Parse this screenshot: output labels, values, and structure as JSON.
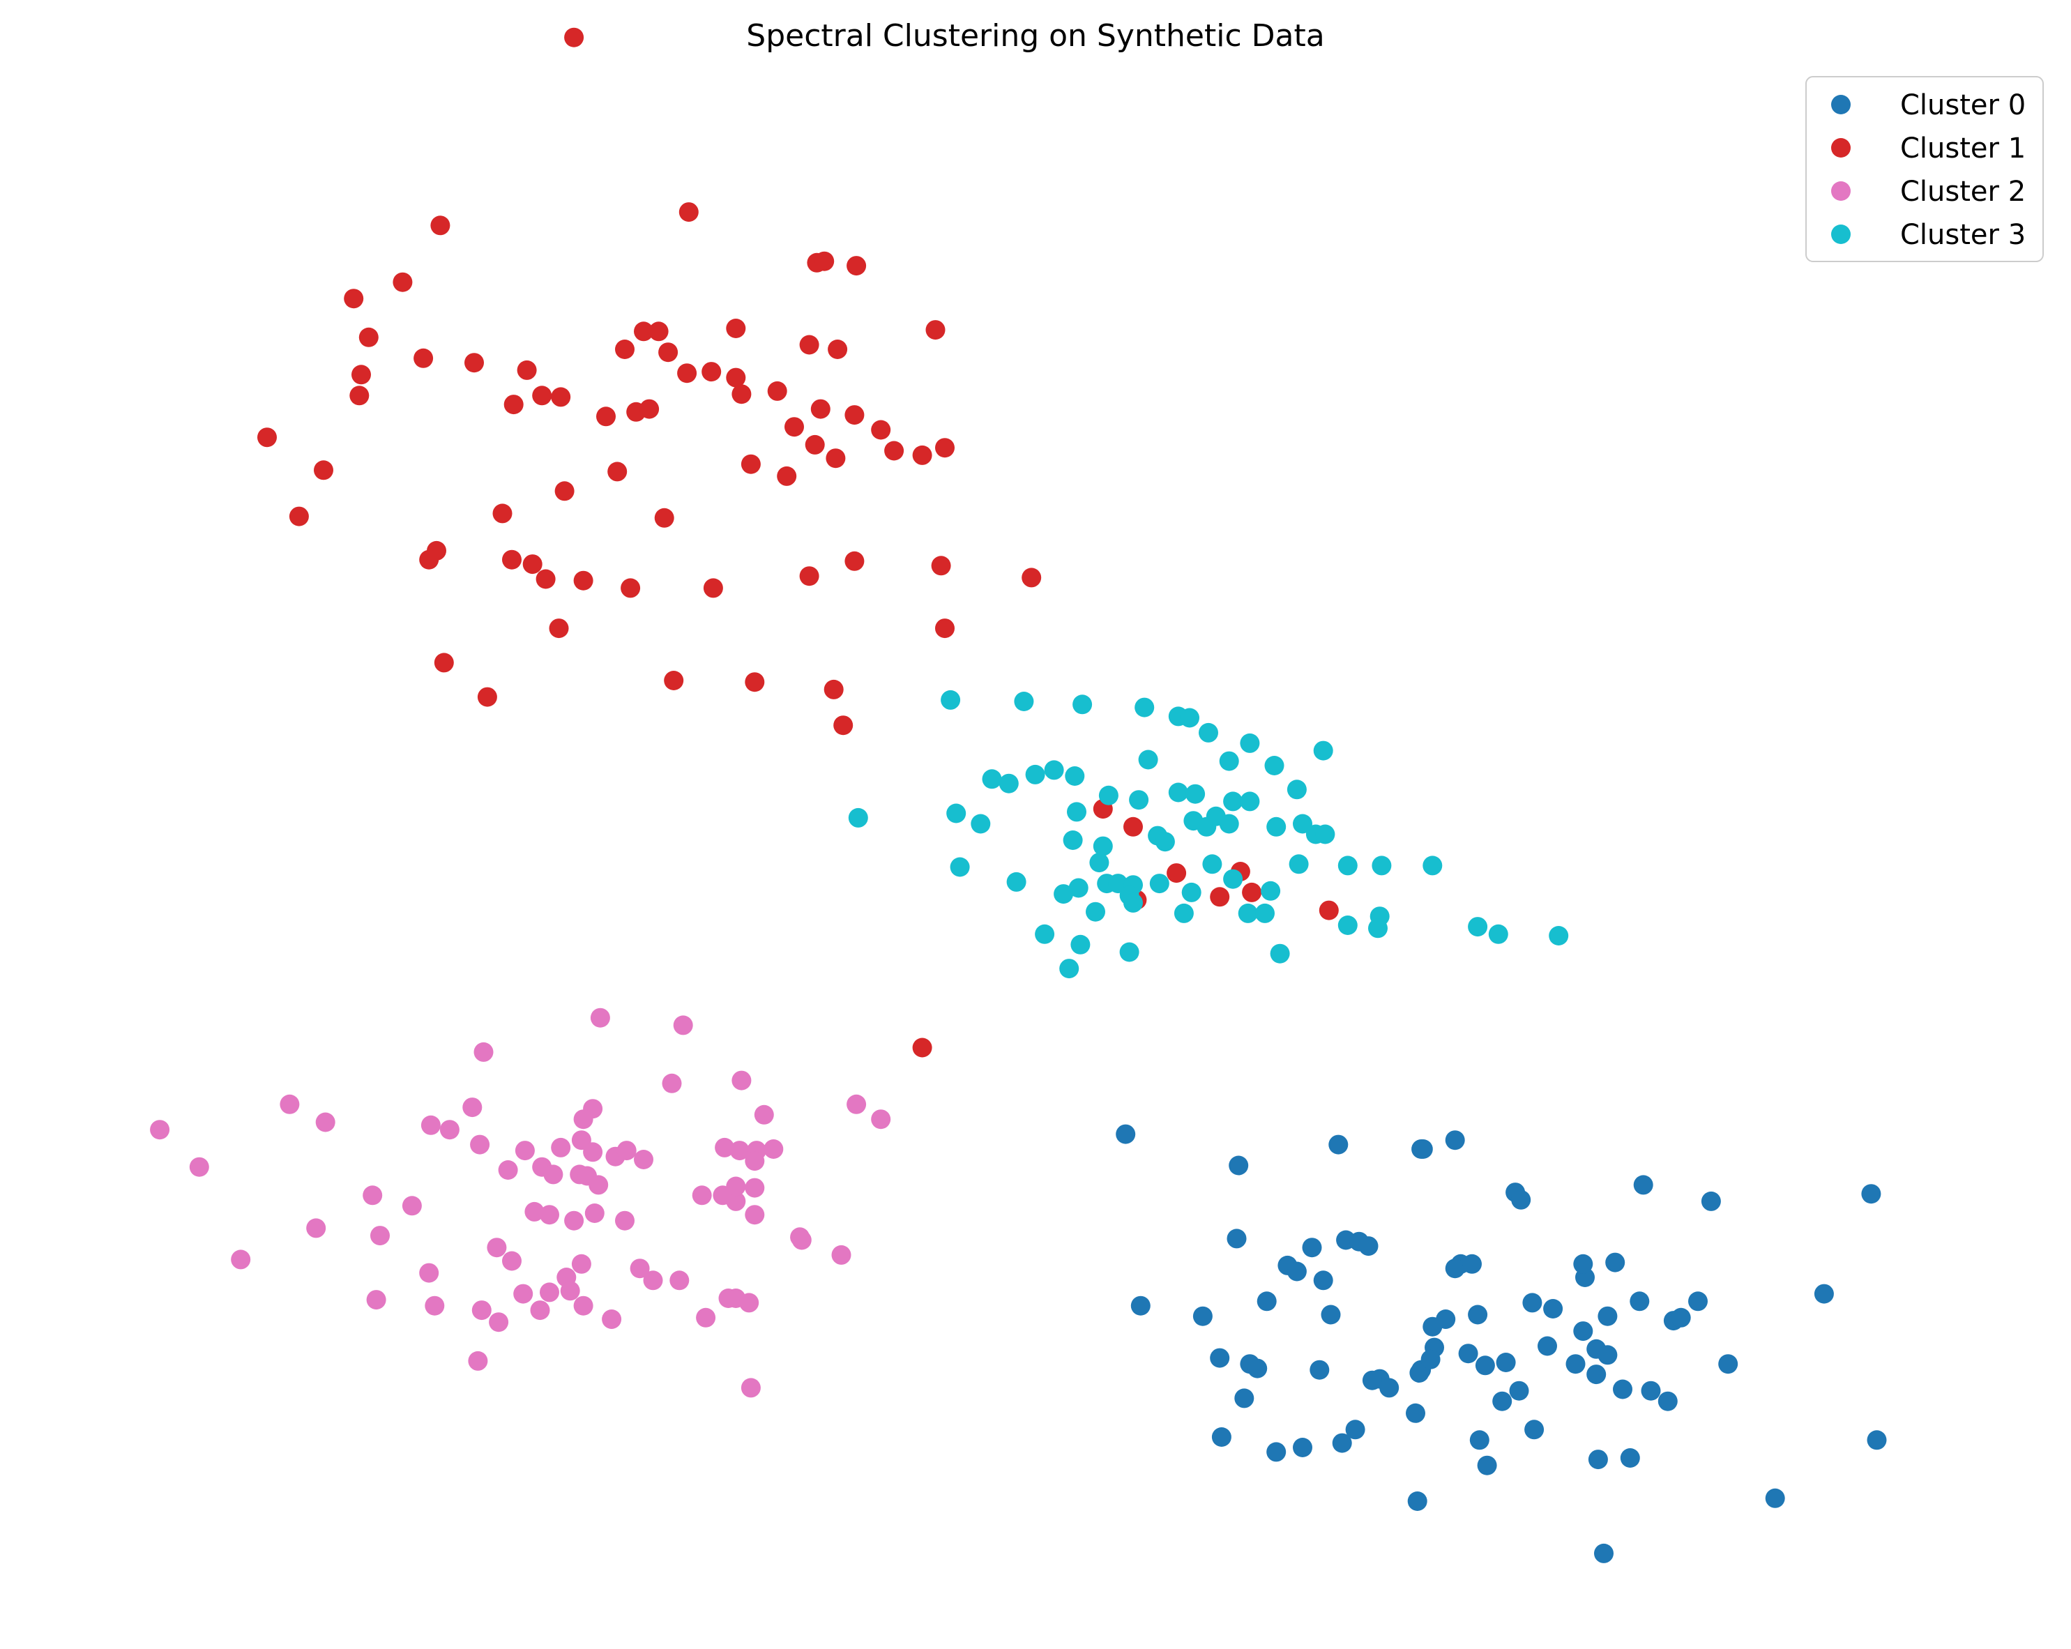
{
  "chart_data": {
    "type": "scatter",
    "title": "Spectral Clustering on Synthetic Data",
    "xlabel": "",
    "ylabel": "",
    "axes_visible": false,
    "grid": false,
    "legend_position": "top-right",
    "xlim": [
      0,
      100
    ],
    "ylim": [
      0,
      100
    ],
    "series": [
      {
        "name": "Cluster 0",
        "color": "#1f77b4",
        "points": [
          [
            54.6,
            31.0
          ],
          [
            60.6,
            28.9
          ],
          [
            65.9,
            30.3
          ],
          [
            70.3,
            30.0
          ],
          [
            70.4,
            30.0
          ],
          [
            72.1,
            30.6
          ],
          [
            75.3,
            27.1
          ],
          [
            75.6,
            26.6
          ],
          [
            82.1,
            27.6
          ],
          [
            85.7,
            26.5
          ],
          [
            94.2,
            27.0
          ],
          [
            60.5,
            24.0
          ],
          [
            64.5,
            23.4
          ],
          [
            66.3,
            23.9
          ],
          [
            67.0,
            23.8
          ],
          [
            67.5,
            23.5
          ],
          [
            72.4,
            22.3
          ],
          [
            72.1,
            22.0
          ],
          [
            73.0,
            22.3
          ],
          [
            79.0,
            21.4
          ],
          [
            78.9,
            22.3
          ],
          [
            80.6,
            22.4
          ],
          [
            63.2,
            22.2
          ],
          [
            63.7,
            21.8
          ],
          [
            65.1,
            21.2
          ],
          [
            55.4,
            19.5
          ],
          [
            58.7,
            18.8
          ],
          [
            62.1,
            19.8
          ],
          [
            65.5,
            18.9
          ],
          [
            71.6,
            18.6
          ],
          [
            73.3,
            18.9
          ],
          [
            76.2,
            19.7
          ],
          [
            77.3,
            19.3
          ],
          [
            80.2,
            18.8
          ],
          [
            81.9,
            19.8
          ],
          [
            83.7,
            18.5
          ],
          [
            84.1,
            18.7
          ],
          [
            85.0,
            19.8
          ],
          [
            91.7,
            20.3
          ],
          [
            70.9,
            18.1
          ],
          [
            71.0,
            16.7
          ],
          [
            72.8,
            16.3
          ],
          [
            74.8,
            15.7
          ],
          [
            77.0,
            16.8
          ],
          [
            78.9,
            17.8
          ],
          [
            79.6,
            16.6
          ],
          [
            80.2,
            16.2
          ],
          [
            86.6,
            15.6
          ],
          [
            59.6,
            16.0
          ],
          [
            61.2,
            15.6
          ],
          [
            61.6,
            15.3
          ],
          [
            64.9,
            15.2
          ],
          [
            68.1,
            14.6
          ],
          [
            70.3,
            15.2
          ],
          [
            70.2,
            15.0
          ],
          [
            70.8,
            15.9
          ],
          [
            73.7,
            15.5
          ],
          [
            78.5,
            15.6
          ],
          [
            79.6,
            14.9
          ],
          [
            60.9,
            13.3
          ],
          [
            67.7,
            14.5
          ],
          [
            68.6,
            14.0
          ],
          [
            70.0,
            12.3
          ],
          [
            74.6,
            13.1
          ],
          [
            75.5,
            13.8
          ],
          [
            81.0,
            13.9
          ],
          [
            82.5,
            13.8
          ],
          [
            83.4,
            13.1
          ],
          [
            94.5,
            10.5
          ],
          [
            59.7,
            10.7
          ],
          [
            62.6,
            9.7
          ],
          [
            64.0,
            10.0
          ],
          [
            66.1,
            10.3
          ],
          [
            73.4,
            10.5
          ],
          [
            76.3,
            11.2
          ],
          [
            81.4,
            9.3
          ],
          [
            70.1,
            6.4
          ],
          [
            73.8,
            8.8
          ],
          [
            89.1,
            6.6
          ],
          [
            80.0,
            2.9
          ],
          [
            66.8,
            11.2
          ],
          [
            79.7,
            9.2
          ]
        ]
      },
      {
        "name": "Cluster 1",
        "color": "#d62728",
        "points": [
          [
            25.3,
            104.5
          ],
          [
            18.2,
            91.9
          ],
          [
            31.4,
            92.8
          ],
          [
            38.2,
            89.4
          ],
          [
            38.6,
            89.5
          ],
          [
            40.3,
            89.2
          ],
          [
            44.5,
            84.9
          ],
          [
            13.6,
            87.0
          ],
          [
            16.2,
            88.1
          ],
          [
            29.8,
            84.8
          ],
          [
            33.9,
            85.0
          ],
          [
            37.8,
            83.9
          ],
          [
            14.4,
            84.4
          ],
          [
            17.3,
            83.0
          ],
          [
            14.0,
            81.9
          ],
          [
            13.9,
            80.5
          ],
          [
            20.0,
            82.7
          ],
          [
            22.8,
            82.2
          ],
          [
            22.1,
            79.9
          ],
          [
            23.6,
            80.5
          ],
          [
            24.6,
            80.4
          ],
          [
            28.0,
            83.6
          ],
          [
            29.0,
            84.8
          ],
          [
            30.3,
            83.4
          ],
          [
            31.3,
            82.0
          ],
          [
            32.6,
            82.1
          ],
          [
            33.9,
            81.7
          ],
          [
            34.2,
            80.6
          ],
          [
            36.1,
            80.8
          ],
          [
            39.3,
            83.6
          ],
          [
            27.0,
            79.1
          ],
          [
            28.6,
            79.4
          ],
          [
            29.3,
            79.6
          ],
          [
            38.4,
            79.6
          ],
          [
            37.0,
            78.4
          ],
          [
            38.1,
            77.2
          ],
          [
            40.2,
            79.2
          ],
          [
            41.6,
            78.2
          ],
          [
            42.3,
            76.8
          ],
          [
            43.8,
            76.5
          ],
          [
            45.0,
            77.0
          ],
          [
            34.7,
            75.9
          ],
          [
            36.6,
            75.1
          ],
          [
            39.2,
            76.3
          ],
          [
            24.8,
            74.1
          ],
          [
            27.6,
            75.4
          ],
          [
            30.1,
            72.3
          ],
          [
            9.0,
            77.7
          ],
          [
            12.0,
            75.5
          ],
          [
            10.7,
            72.4
          ],
          [
            18.0,
            70.1
          ],
          [
            17.6,
            69.5
          ],
          [
            22.0,
            69.5
          ],
          [
            23.1,
            69.2
          ],
          [
            21.5,
            72.6
          ],
          [
            23.8,
            68.2
          ],
          [
            25.8,
            68.1
          ],
          [
            28.3,
            67.6
          ],
          [
            32.7,
            67.6
          ],
          [
            37.8,
            68.4
          ],
          [
            40.2,
            69.4
          ],
          [
            44.8,
            69.1
          ],
          [
            49.6,
            68.3
          ],
          [
            45.0,
            64.9
          ],
          [
            24.5,
            64.9
          ],
          [
            18.4,
            62.6
          ],
          [
            30.6,
            61.4
          ],
          [
            34.9,
            61.3
          ],
          [
            39.1,
            60.8
          ],
          [
            39.6,
            58.4
          ],
          [
            53.4,
            52.8
          ],
          [
            55.0,
            51.6
          ],
          [
            60.7,
            48.6
          ],
          [
            55.2,
            46.7
          ],
          [
            57.3,
            48.5
          ],
          [
            61.3,
            47.2
          ],
          [
            59.6,
            46.9
          ],
          [
            65.4,
            46.0
          ],
          [
            43.8,
            36.8
          ],
          [
            20.7,
            60.3
          ]
        ]
      },
      {
        "name": "Cluster 2",
        "color": "#e377c2",
        "points": [
          [
            26.7,
            38.8
          ],
          [
            31.1,
            38.3
          ],
          [
            20.5,
            36.5
          ],
          [
            30.5,
            34.4
          ],
          [
            34.2,
            34.6
          ],
          [
            19.9,
            32.8
          ],
          [
            26.3,
            32.7
          ],
          [
            10.2,
            33.0
          ],
          [
            25.8,
            32.0
          ],
          [
            35.4,
            32.3
          ],
          [
            3.3,
            31.3
          ],
          [
            12.1,
            31.8
          ],
          [
            17.7,
            31.6
          ],
          [
            18.7,
            31.3
          ],
          [
            40.3,
            33.0
          ],
          [
            41.6,
            32.0
          ],
          [
            20.3,
            30.3
          ],
          [
            22.7,
            29.9
          ],
          [
            24.6,
            30.1
          ],
          [
            25.7,
            30.6
          ],
          [
            26.3,
            29.8
          ],
          [
            27.5,
            29.5
          ],
          [
            28.1,
            29.9
          ],
          [
            29.0,
            29.3
          ],
          [
            33.3,
            30.1
          ],
          [
            34.1,
            29.9
          ],
          [
            35.0,
            29.9
          ],
          [
            35.9,
            30.0
          ],
          [
            34.9,
            29.2
          ],
          [
            5.4,
            28.8
          ],
          [
            21.8,
            28.6
          ],
          [
            23.6,
            28.8
          ],
          [
            24.2,
            28.3
          ],
          [
            25.6,
            28.3
          ],
          [
            26.0,
            28.2
          ],
          [
            26.6,
            27.6
          ],
          [
            32.1,
            26.9
          ],
          [
            33.2,
            26.9
          ],
          [
            33.9,
            26.5
          ],
          [
            14.6,
            26.9
          ],
          [
            16.7,
            26.2
          ],
          [
            23.2,
            25.8
          ],
          [
            24.0,
            25.6
          ],
          [
            25.3,
            25.2
          ],
          [
            26.4,
            25.7
          ],
          [
            28.0,
            25.2
          ],
          [
            33.9,
            27.5
          ],
          [
            34.9,
            25.6
          ],
          [
            37.4,
            23.9
          ],
          [
            39.5,
            22.9
          ],
          [
            15.0,
            24.2
          ],
          [
            21.2,
            23.4
          ],
          [
            22.0,
            22.5
          ],
          [
            24.9,
            21.4
          ],
          [
            25.7,
            22.3
          ],
          [
            37.3,
            24.1
          ],
          [
            7.6,
            22.6
          ],
          [
            11.6,
            24.7
          ],
          [
            17.6,
            21.7
          ],
          [
            22.6,
            20.3
          ],
          [
            24.0,
            20.4
          ],
          [
            25.1,
            20.5
          ],
          [
            28.8,
            22.0
          ],
          [
            29.5,
            21.2
          ],
          [
            30.9,
            21.2
          ],
          [
            33.5,
            20.0
          ],
          [
            33.9,
            20.0
          ],
          [
            14.8,
            19.9
          ],
          [
            17.9,
            19.5
          ],
          [
            20.4,
            19.2
          ],
          [
            21.3,
            18.4
          ],
          [
            23.5,
            19.2
          ],
          [
            25.8,
            19.5
          ],
          [
            34.6,
            19.7
          ],
          [
            32.3,
            18.7
          ],
          [
            20.2,
            15.8
          ],
          [
            34.7,
            14.0
          ],
          [
            27.3,
            18.6
          ],
          [
            34.9,
            27.4
          ]
        ]
      },
      {
        "name": "Cluster 3",
        "color": "#17becf",
        "points": [
          [
            45.3,
            60.1
          ],
          [
            49.2,
            60.0
          ],
          [
            52.3,
            59.8
          ],
          [
            55.6,
            59.6
          ],
          [
            57.4,
            59.0
          ],
          [
            58.0,
            58.9
          ],
          [
            59.0,
            57.9
          ],
          [
            55.8,
            56.1
          ],
          [
            60.1,
            56.0
          ],
          [
            61.2,
            57.2
          ],
          [
            65.1,
            56.7
          ],
          [
            62.5,
            55.7
          ],
          [
            49.8,
            55.1
          ],
          [
            50.8,
            55.4
          ],
          [
            47.5,
            54.8
          ],
          [
            48.4,
            54.5
          ],
          [
            51.9,
            55.0
          ],
          [
            53.7,
            53.7
          ],
          [
            55.3,
            53.4
          ],
          [
            57.4,
            53.9
          ],
          [
            58.3,
            53.8
          ],
          [
            60.3,
            53.3
          ],
          [
            61.2,
            53.3
          ],
          [
            63.7,
            54.1
          ],
          [
            45.6,
            52.5
          ],
          [
            46.9,
            51.8
          ],
          [
            52.0,
            52.6
          ],
          [
            58.2,
            52.0
          ],
          [
            58.9,
            51.6
          ],
          [
            59.4,
            52.3
          ],
          [
            60.1,
            51.8
          ],
          [
            62.6,
            51.6
          ],
          [
            64.0,
            51.8
          ],
          [
            40.4,
            52.2
          ],
          [
            51.8,
            50.7
          ],
          [
            53.4,
            50.3
          ],
          [
            56.3,
            51.0
          ],
          [
            56.7,
            50.6
          ],
          [
            64.7,
            51.1
          ],
          [
            65.2,
            51.1
          ],
          [
            45.8,
            48.9
          ],
          [
            53.2,
            49.2
          ],
          [
            59.2,
            49.1
          ],
          [
            60.3,
            48.1
          ],
          [
            63.8,
            49.1
          ],
          [
            66.4,
            49.0
          ],
          [
            68.2,
            49.0
          ],
          [
            70.9,
            49.0
          ],
          [
            48.8,
            47.9
          ],
          [
            52.1,
            47.5
          ],
          [
            53.6,
            47.8
          ],
          [
            54.2,
            47.8
          ],
          [
            55.0,
            47.7
          ],
          [
            56.4,
            47.8
          ],
          [
            51.3,
            47.1
          ],
          [
            54.8,
            47.0
          ],
          [
            58.1,
            47.2
          ],
          [
            62.3,
            47.3
          ],
          [
            61.1,
            45.8
          ],
          [
            62.0,
            45.8
          ],
          [
            53.0,
            45.9
          ],
          [
            55.0,
            46.5
          ],
          [
            57.7,
            45.8
          ],
          [
            66.4,
            45.0
          ],
          [
            68.1,
            45.6
          ],
          [
            68.0,
            44.8
          ],
          [
            50.3,
            44.4
          ],
          [
            52.2,
            43.7
          ],
          [
            54.8,
            43.2
          ],
          [
            62.8,
            43.1
          ],
          [
            74.4,
            44.4
          ],
          [
            77.6,
            44.3
          ],
          [
            51.6,
            42.1
          ],
          [
            73.3,
            44.9
          ]
        ]
      }
    ]
  }
}
